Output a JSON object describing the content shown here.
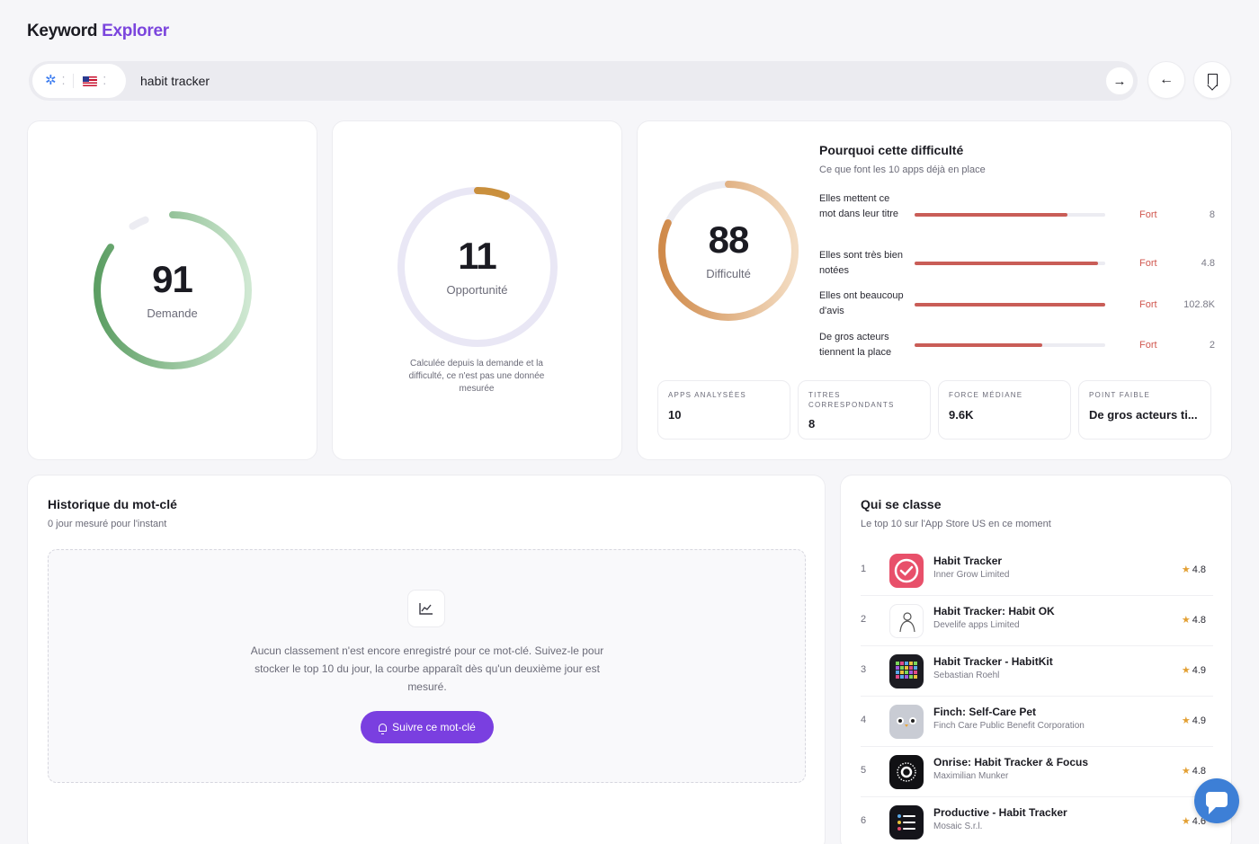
{
  "brand": {
    "name_part1": "Keyword",
    "name_part2": "Explorer"
  },
  "search": {
    "query": "habit tracker",
    "placeholder": "",
    "submit_icon": "arrow-right-icon"
  },
  "toolbar": {
    "back_icon": "arrow-left-icon",
    "bookmark_icon": "bookmark-icon",
    "store_icon": "app-store-icon",
    "country_icon": "us-flag-icon"
  },
  "gauges": {
    "demand": {
      "value": "91",
      "label": "Demande",
      "fraction": 0.91
    },
    "opportunity": {
      "value": "11",
      "label": "Opportunité",
      "fraction": 0.11,
      "note": "Calculée depuis la demande et la difficulté, ce n'est pas une donnée mesurée"
    },
    "difficulty": {
      "value": "88",
      "label": "Difficulté",
      "fraction": 0.88
    }
  },
  "difficulty_panel": {
    "title": "Pourquoi cette difficulté",
    "subtitle": "Ce que font les 10 apps déjà en place",
    "factors": [
      {
        "label": "Elles mettent ce mot dans leur titre",
        "level": "Fort",
        "value": "8",
        "fill": 0.8
      },
      {
        "label": "Elles sont très bien notées",
        "level": "Fort",
        "value": "4.8",
        "fill": 0.96
      },
      {
        "label": "Elles ont beaucoup d'avis",
        "level": "Fort",
        "value": "102.8K",
        "fill": 1.0
      },
      {
        "label": "De gros acteurs tiennent la place",
        "level": "Fort",
        "value": "2",
        "fill": 0.67
      }
    ],
    "stats": [
      {
        "label": "APPS ANALYSÉES",
        "value": "10"
      },
      {
        "label": "TITRES CORRESPONDANTS",
        "value": "8"
      },
      {
        "label": "FORCE MÉDIANE",
        "value": "9.6K"
      },
      {
        "label": "POINT FAIBLE",
        "value": "De gros acteurs ti..."
      }
    ]
  },
  "history": {
    "title": "Historique du mot-clé",
    "subtitle": "0 jour mesuré pour l'instant",
    "empty_text": "Aucun classement n'est encore enregistré pour ce mot-clé. Suivez-le pour stocker le top 10 du jour, la courbe apparaît dès qu'un deuxième jour est mesuré.",
    "follow_button": "Suivre ce mot-clé",
    "chart_icon": "line-chart-icon"
  },
  "ranking": {
    "title": "Qui se classe",
    "subtitle": "Le top 10 sur l'App Store US en ce moment",
    "apps": [
      {
        "rank": "1",
        "name": "Habit Tracker",
        "developer": "Inner Grow Limited",
        "rating": "4.8",
        "icon": "habit-tracker-app-icon"
      },
      {
        "rank": "2",
        "name": "Habit Tracker: Habit OK",
        "developer": "Develife apps Limited",
        "rating": "4.8",
        "icon": "habit-ok-app-icon"
      },
      {
        "rank": "3",
        "name": "Habit Tracker - HabitKit",
        "developer": "Sebastian Roehl",
        "rating": "4.9",
        "icon": "habitkit-app-icon"
      },
      {
        "rank": "4",
        "name": "Finch: Self-Care Pet",
        "developer": "Finch Care Public Benefit Corporation",
        "rating": "4.9",
        "icon": "finch-app-icon"
      },
      {
        "rank": "5",
        "name": "Onrise: Habit Tracker & Focus",
        "developer": "Maximilian Munker",
        "rating": "4.8",
        "icon": "onrise-app-icon"
      },
      {
        "rank": "6",
        "name": "Productive - Habit Tracker",
        "developer": "Mosaic S.r.l.",
        "rating": "4.6",
        "icon": "productive-app-icon"
      }
    ]
  },
  "colors": {
    "accent": "#7b45dd",
    "demand_gauge": "#5c9e63",
    "opportunity_gauge": "#d9a35a",
    "difficulty_gauge": "#d08a4a",
    "factor_bar": "#c95d57",
    "chat": "#3d7fd6"
  },
  "chat_icon": "chat-bubble-icon"
}
